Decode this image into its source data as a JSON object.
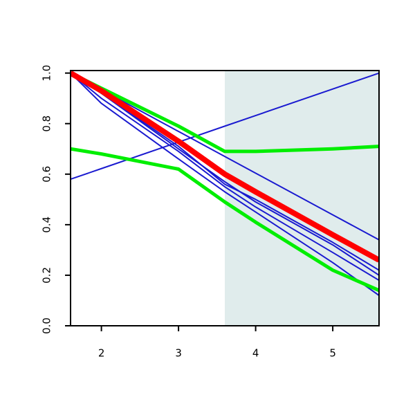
{
  "chart_data": {
    "type": "line",
    "x": [
      1.6,
      2,
      3,
      3.6,
      4,
      5,
      5.6
    ],
    "xlim": [
      1.6,
      5.6
    ],
    "xticks": [
      2,
      3,
      4,
      5
    ],
    "ylim": [
      0,
      1.01
    ],
    "yticks": [
      {
        "value": 0,
        "label": "0.0"
      },
      {
        "value": 0.2,
        "label": "0.2"
      },
      {
        "value": 0.4,
        "label": "0.4"
      },
      {
        "value": 0.6,
        "label": "0.6"
      },
      {
        "value": 0.8,
        "label": "0.8"
      },
      {
        "value": 1,
        "label": "1.0"
      }
    ],
    "shade": {
      "xlim": [
        3.6,
        5.6
      ],
      "color": "#e0ecec"
    },
    "series": [
      {
        "color": "#1a1ad0",
        "lwd": 2,
        "values": [
          0.58,
          0.622,
          0.727,
          0.79,
          0.832,
          0.937,
          1.0
        ]
      },
      {
        "color": "#1a1ad0",
        "lwd": 2,
        "values": [
          1,
          0.934,
          0.769,
          0.67,
          0.604,
          0.439,
          0.34
        ]
      },
      {
        "color": "#1a1ad0",
        "lwd": 2,
        "values": [
          1,
          0.92,
          0.71,
          0.56,
          0.5,
          0.33,
          0.22
        ]
      },
      {
        "color": "#1a1ad0",
        "lwd": 2,
        "values": [
          1,
          0.92,
          0.7,
          0.57,
          0.49,
          0.32,
          0.2
        ]
      },
      {
        "color": "#1a1ad0",
        "lwd": 2,
        "values": [
          1,
          0.9,
          0.69,
          0.55,
          0.47,
          0.29,
          0.18
        ]
      },
      {
        "color": "#1a1ad0",
        "lwd": 2,
        "values": [
          1,
          0.88,
          0.66,
          0.53,
          0.45,
          0.25,
          0.12
        ]
      },
      {
        "color": "#00ee00",
        "lwd": 5,
        "values": [
          1,
          0.94,
          0.79,
          0.69,
          0.69,
          0.7,
          0.71
        ]
      },
      {
        "color": "#00ee00",
        "lwd": 5,
        "values": [
          0.7,
          0.68,
          0.62,
          0.49,
          0.41,
          0.22,
          0.14
        ]
      },
      {
        "color": "#ff0000",
        "lwd": 8,
        "values": [
          1,
          0.93,
          0.73,
          0.6,
          0.53,
          0.36,
          0.26
        ]
      }
    ]
  }
}
